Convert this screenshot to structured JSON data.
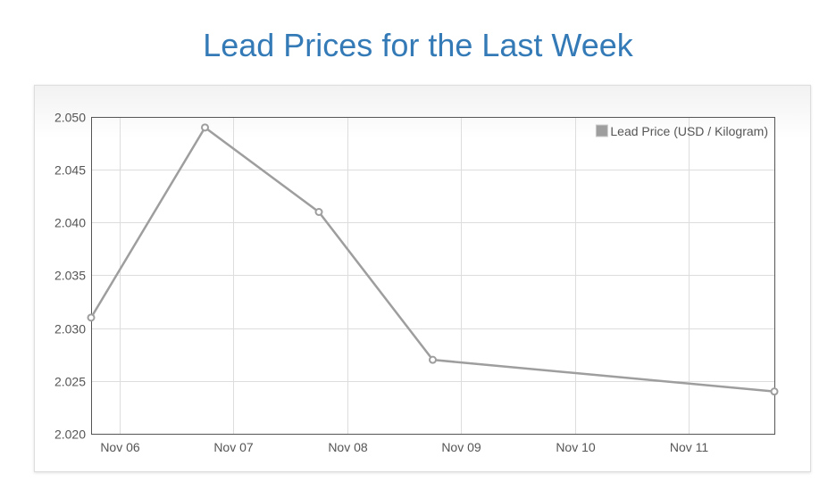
{
  "page": {
    "title": "Lead Prices for the Last Week"
  },
  "colors": {
    "title": "#337ab7",
    "series": "#9e9e9e",
    "grid": "#dddddd",
    "axis_text": "#555555"
  },
  "chart_data": {
    "type": "line",
    "title": "",
    "xlabel": "",
    "ylabel": "",
    "x_type": "date",
    "x_ticks": [
      "Nov 06",
      "Nov 07",
      "Nov 08",
      "Nov 09",
      "Nov 10",
      "Nov 11"
    ],
    "xlim": [
      "2017-11-05 18:00",
      "2017-11-11 18:00"
    ],
    "ylim": [
      2.02,
      2.05
    ],
    "y_ticks": [
      "2.050",
      "2.045",
      "2.040",
      "2.035",
      "2.030",
      "2.025",
      "2.020"
    ],
    "grid": true,
    "legend_position": "top-right",
    "series": [
      {
        "name": "Lead Price (USD / Kilogram)",
        "color": "#9e9e9e",
        "points": [
          {
            "x": "2017-11-05 18:00",
            "y": 2.031
          },
          {
            "x": "2017-11-06 18:00",
            "y": 2.049
          },
          {
            "x": "2017-11-07 18:00",
            "y": 2.041
          },
          {
            "x": "2017-11-08 18:00",
            "y": 2.027
          },
          {
            "x": "2017-11-11 18:00",
            "y": 2.024
          }
        ]
      }
    ]
  }
}
